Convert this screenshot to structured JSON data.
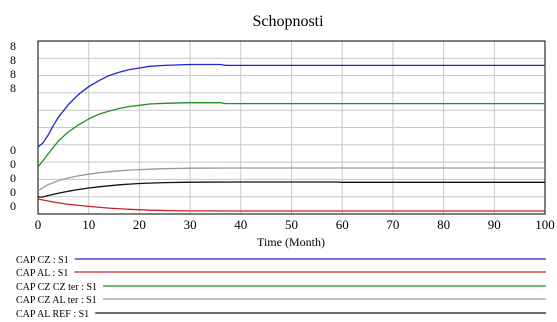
{
  "chart_data": {
    "type": "line",
    "title": "Schopnosti",
    "xlabel": "Time (Month)",
    "xlim": [
      0,
      100
    ],
    "x_ticks": [
      "0",
      "10",
      "20",
      "30",
      "40",
      "50",
      "60",
      "70",
      "80",
      "90",
      "100"
    ],
    "ylim_note": "upper group ticks printed as 8, lower group ticks printed as 0",
    "y_tick_labels_upper": [
      "8",
      "8",
      "8",
      "8"
    ],
    "y_tick_labels_lower": [
      "0",
      "0",
      "0",
      "0",
      "0"
    ],
    "grid": true,
    "legend_placement": "bottom",
    "series": [
      {
        "name": "CAP CZ : S1",
        "color": "#2323d6",
        "x": [
          0,
          1,
          2,
          3,
          4,
          6,
          8,
          10,
          12,
          14,
          16,
          18,
          20,
          22,
          25,
          30,
          36,
          37,
          40,
          50,
          60,
          70,
          80,
          90,
          100
        ],
        "y": [
          0.0,
          0.05,
          0.14,
          0.25,
          0.35,
          0.5,
          0.62,
          0.71,
          0.78,
          0.84,
          0.88,
          0.91,
          0.93,
          0.95,
          0.96,
          0.97,
          0.97,
          0.96,
          0.96,
          0.96,
          0.96,
          0.96,
          0.96,
          0.96,
          0.96
        ]
      },
      {
        "name": "CAP AL : S1",
        "color": "#cc2222",
        "x": [
          0,
          3,
          6,
          10,
          14,
          18,
          22,
          26,
          30,
          40,
          50,
          60,
          70,
          80,
          90,
          100
        ],
        "y": [
          1.0,
          0.75,
          0.55,
          0.38,
          0.24,
          0.14,
          0.07,
          0.03,
          0.01,
          0.0,
          0.0,
          0.0,
          0.0,
          0.0,
          0.0,
          0.0
        ]
      },
      {
        "name": "CAP CZ CZ ter : S1",
        "color": "#1f8f1f",
        "x": [
          0,
          1,
          2,
          3,
          4,
          6,
          8,
          10,
          12,
          14,
          16,
          18,
          20,
          22,
          25,
          30,
          36,
          37,
          40,
          50,
          60,
          70,
          80,
          90,
          100
        ],
        "y": [
          0.0,
          0.1,
          0.2,
          0.3,
          0.4,
          0.54,
          0.65,
          0.74,
          0.81,
          0.86,
          0.9,
          0.93,
          0.95,
          0.97,
          0.98,
          0.99,
          0.99,
          0.975,
          0.975,
          0.975,
          0.975,
          0.975,
          0.975,
          0.975,
          0.975
        ]
      },
      {
        "name": "CAP CZ AL ter : S1",
        "color": "#9a9a9a",
        "x": [
          0,
          1,
          2,
          4,
          6,
          8,
          10,
          12,
          14,
          16,
          18,
          20,
          22,
          25,
          30,
          40,
          50,
          60,
          70,
          80,
          90,
          100
        ],
        "y": [
          0.0,
          0.15,
          0.28,
          0.45,
          0.57,
          0.66,
          0.73,
          0.79,
          0.84,
          0.88,
          0.91,
          0.93,
          0.95,
          0.97,
          0.99,
          1.0,
          1.0,
          1.0,
          1.0,
          1.0,
          1.0,
          1.0
        ]
      },
      {
        "name": "CAP AL REF : S1",
        "color": "#111111",
        "x": [
          0,
          1,
          2,
          4,
          6,
          8,
          10,
          12,
          14,
          16,
          18,
          20,
          22,
          25,
          30,
          40,
          50,
          59,
          60,
          70,
          80,
          90,
          100
        ],
        "y": [
          0.0,
          0.0,
          0.1,
          0.25,
          0.39,
          0.5,
          0.6,
          0.68,
          0.75,
          0.81,
          0.86,
          0.9,
          0.93,
          0.96,
          0.99,
          1.0,
          1.0,
          1.0,
          0.98,
          0.98,
          0.98,
          0.98,
          0.98
        ]
      }
    ]
  }
}
